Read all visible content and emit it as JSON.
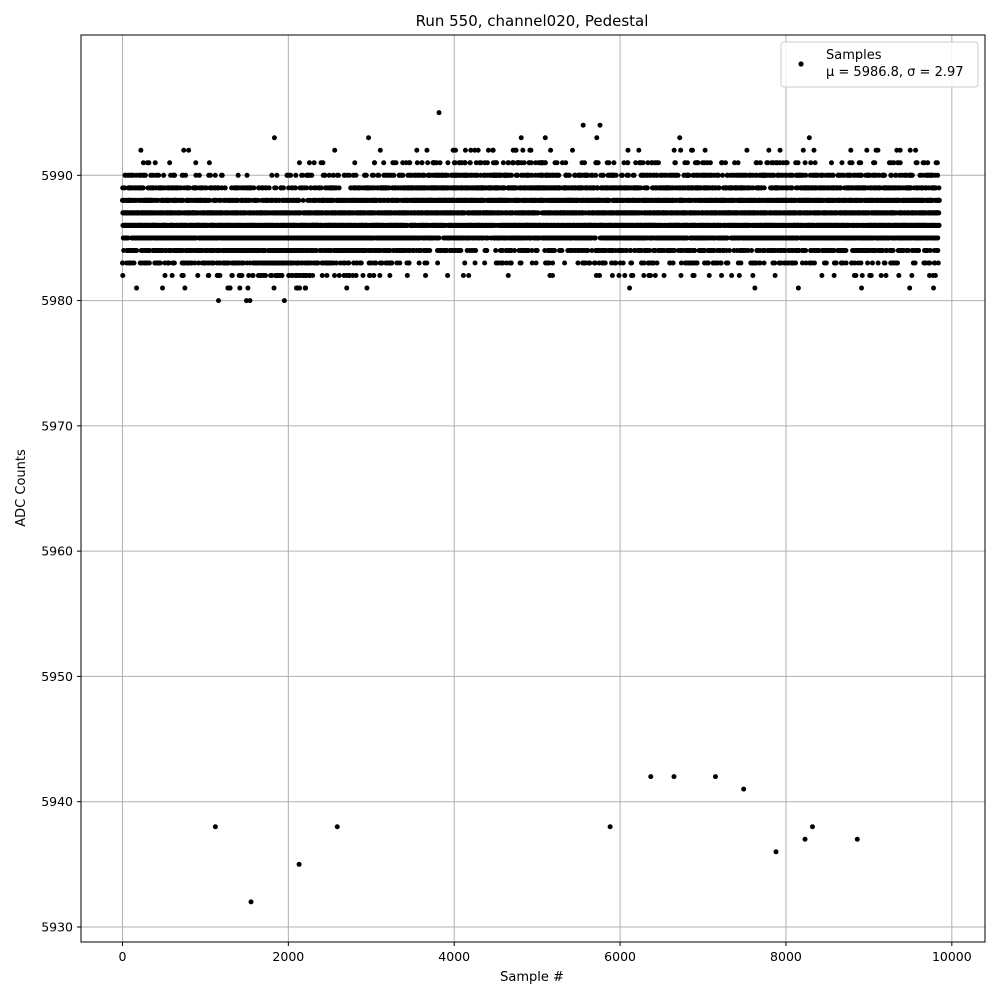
{
  "chart_data": {
    "type": "scatter",
    "title": "Run 550, channel020, Pedestal",
    "xlabel": "Sample #",
    "ylabel": "ADC Counts",
    "xlim": [
      -500,
      10400
    ],
    "ylim": [
      5928.8,
      6001.2
    ],
    "xticks": [
      0,
      2000,
      4000,
      6000,
      8000,
      10000
    ],
    "yticks": [
      5930,
      5940,
      5950,
      5960,
      5970,
      5980,
      5990
    ],
    "xtick_labels": [
      "0",
      "2000",
      "4000",
      "6000",
      "8000",
      "10000"
    ],
    "ytick_labels": [
      "5930",
      "5940",
      "5950",
      "5960",
      "5970",
      "5980",
      "5990"
    ],
    "grid": true,
    "legend_position": "top-right",
    "marker_color": "#000000",
    "series": [
      {
        "name": "Samples",
        "legend_stat_line": "μ = 5986.8, σ = 2.97",
        "mean": 5986.8,
        "sigma": 2.97,
        "count": 9850,
        "band": {
          "description": "dense band of integer ADC values, each sample index from 0 to 9850",
          "value_min": 5979,
          "value_max": 5995,
          "core_min": 5984,
          "core_max": 5990,
          "max_value": 5995,
          "min_value_in_band": 5979
        },
        "outliers": [
          {
            "x": 1120,
            "y": 5938
          },
          {
            "x": 1550,
            "y": 5932
          },
          {
            "x": 2130,
            "y": 5935
          },
          {
            "x": 2590,
            "y": 5938
          },
          {
            "x": 5880,
            "y": 5938
          },
          {
            "x": 6370,
            "y": 5942
          },
          {
            "x": 6650,
            "y": 5942
          },
          {
            "x": 7150,
            "y": 5942
          },
          {
            "x": 7490,
            "y": 5941
          },
          {
            "x": 7880,
            "y": 5936
          },
          {
            "x": 8230,
            "y": 5937
          },
          {
            "x": 8320,
            "y": 5938
          },
          {
            "x": 8860,
            "y": 5937
          }
        ]
      }
    ]
  }
}
